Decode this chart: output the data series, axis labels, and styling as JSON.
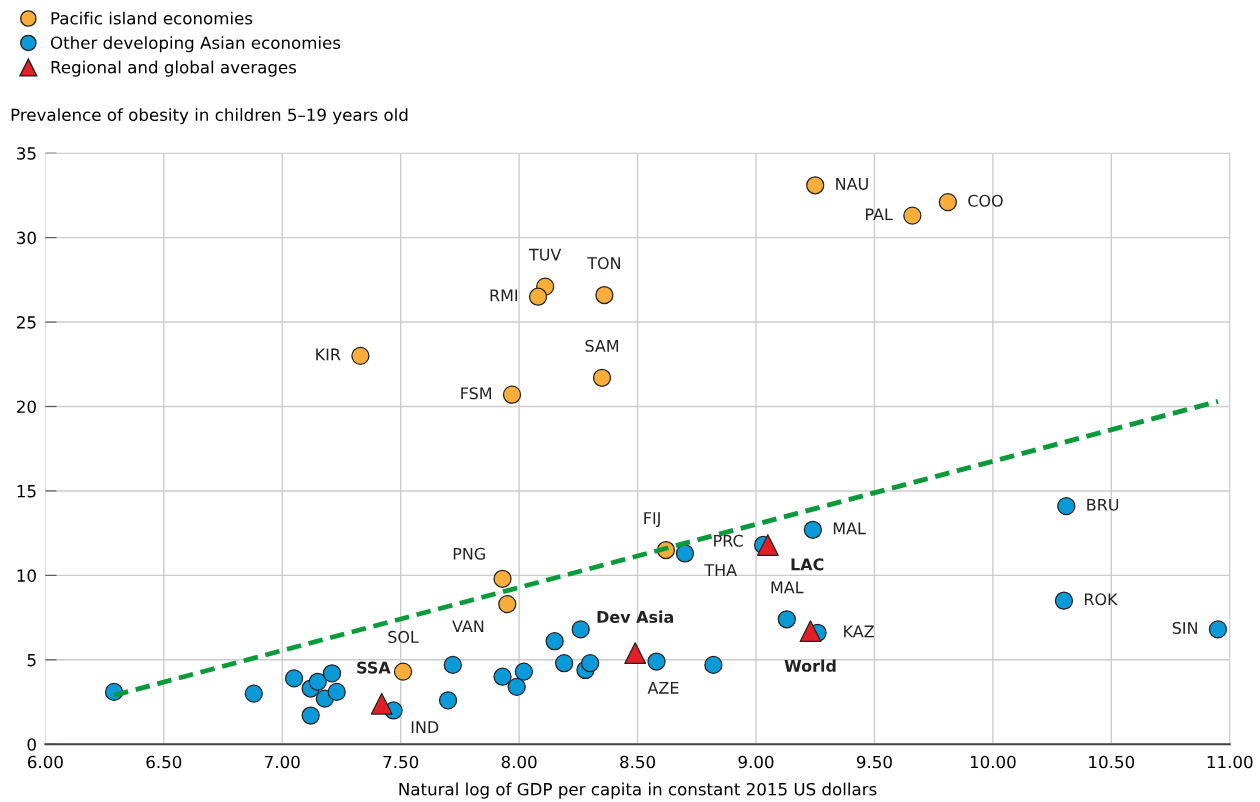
{
  "chart_data": {
    "type": "scatter",
    "ylabel": "Prevalence of obesity in children 5–19 years old",
    "xlabel": "Natural log of GDP per capita in constant 2015 US dollars",
    "xlim": [
      6.0,
      11.0
    ],
    "ylim": [
      0,
      35
    ],
    "xticks": [
      {
        "value": 6.0,
        "label": "6.00"
      },
      {
        "value": 6.5,
        "label": "6.50"
      },
      {
        "value": 7.0,
        "label": "7.00"
      },
      {
        "value": 7.5,
        "label": "7.50"
      },
      {
        "value": 8.0,
        "label": "8.00"
      },
      {
        "value": 8.5,
        "label": "8.50"
      },
      {
        "value": 9.0,
        "label": "9.00"
      },
      {
        "value": 9.5,
        "label": "9.50"
      },
      {
        "value": 10.0,
        "label": "10.00"
      },
      {
        "value": 10.5,
        "label": "10.50"
      },
      {
        "value": 11.0,
        "label": "11.00"
      }
    ],
    "yticks": [
      0,
      5,
      10,
      15,
      20,
      25,
      30,
      35
    ],
    "grid": true,
    "legend": "top left",
    "series": [
      {
        "name": "Pacific island economies",
        "color": "#f9ad3b",
        "marker": "circle",
        "x": [
          9.25,
          9.81,
          9.66,
          8.11,
          8.08,
          8.36,
          7.33,
          8.35,
          7.97,
          7.93,
          7.95,
          7.51,
          8.62
        ],
        "values": [
          33.1,
          32.1,
          31.3,
          27.1,
          26.5,
          26.6,
          23.0,
          21.7,
          20.7,
          9.8,
          8.3,
          4.3,
          11.5
        ]
      },
      {
        "name": "Other developing Asian economies",
        "color": "#0b9ad8",
        "marker": "circle",
        "x": [
          6.29,
          6.88,
          7.05,
          7.12,
          7.15,
          7.21,
          7.18,
          7.23,
          7.12,
          7.47,
          7.7,
          7.72,
          7.93,
          7.99,
          8.02,
          8.15,
          8.19,
          8.26,
          8.28,
          8.3,
          8.58,
          8.82,
          8.7,
          9.03,
          9.24,
          9.13,
          9.26,
          10.31,
          10.3,
          10.95
        ],
        "values": [
          3.1,
          3.0,
          3.9,
          3.3,
          3.7,
          4.2,
          2.7,
          3.1,
          1.7,
          2.0,
          2.6,
          4.7,
          4.0,
          3.4,
          4.3,
          6.1,
          4.8,
          6.8,
          4.4,
          4.8,
          4.9,
          4.7,
          11.3,
          11.8,
          12.7,
          7.4,
          6.6,
          14.1,
          8.5,
          6.8
        ]
      },
      {
        "name": "Regional and global averages",
        "color": "#e31e24",
        "marker": "triangle",
        "x": [
          7.42,
          8.49,
          9.05,
          9.23
        ],
        "values": [
          2.4,
          5.4,
          11.8,
          6.7
        ]
      },
      {
        "type": "line",
        "color": "#0a9a3c",
        "line_style": "dashed",
        "marker": "none",
        "x": [
          6.29,
          10.95
        ],
        "values": [
          2.9,
          20.3
        ]
      }
    ],
    "annotations": [
      {
        "text": "NAU",
        "x": 9.25,
        "y": 33.1
      },
      {
        "text": "COO",
        "x": 9.81,
        "y": 32.1
      },
      {
        "text": "PAL",
        "x": 9.66,
        "y": 31.3
      },
      {
        "text": "TUV",
        "x": 8.11,
        "y": 27.1
      },
      {
        "text": "RMI",
        "x": 8.08,
        "y": 26.5
      },
      {
        "text": "TON",
        "x": 8.36,
        "y": 26.6
      },
      {
        "text": "KIR",
        "x": 7.33,
        "y": 23.0
      },
      {
        "text": "SAM",
        "x": 8.35,
        "y": 21.7
      },
      {
        "text": "FSM",
        "x": 7.97,
        "y": 20.7
      },
      {
        "text": "PNG",
        "x": 7.93,
        "y": 9.8
      },
      {
        "text": "VAN",
        "x": 7.95,
        "y": 8.3
      },
      {
        "text": "SOL",
        "x": 7.51,
        "y": 4.3
      },
      {
        "text": "FIJ",
        "x": 8.62,
        "y": 11.5
      },
      {
        "text": "THA",
        "x": 8.7,
        "y": 11.3
      },
      {
        "text": "PRC",
        "x": 9.03,
        "y": 11.8
      },
      {
        "text": "MAL",
        "x": 9.24,
        "y": 12.7
      },
      {
        "text": "MAL",
        "x": 9.13,
        "y": 7.4
      },
      {
        "text": "KAZ",
        "x": 9.26,
        "y": 6.6
      },
      {
        "text": "BRU",
        "x": 10.31,
        "y": 14.1
      },
      {
        "text": "ROK",
        "x": 10.3,
        "y": 8.5
      },
      {
        "text": "SIN",
        "x": 10.95,
        "y": 6.8
      },
      {
        "text": "IND",
        "x": 7.47,
        "y": 2.0
      },
      {
        "text": "AZE",
        "x": 8.58,
        "y": 4.9
      },
      {
        "text": "SSA",
        "x": 7.42,
        "y": 2.4
      },
      {
        "text": "Dev Asia",
        "x": 8.49,
        "y": 5.4
      },
      {
        "text": "LAC",
        "x": 9.05,
        "y": 11.8
      },
      {
        "text": "World",
        "x": 9.23,
        "y": 6.7
      }
    ]
  }
}
